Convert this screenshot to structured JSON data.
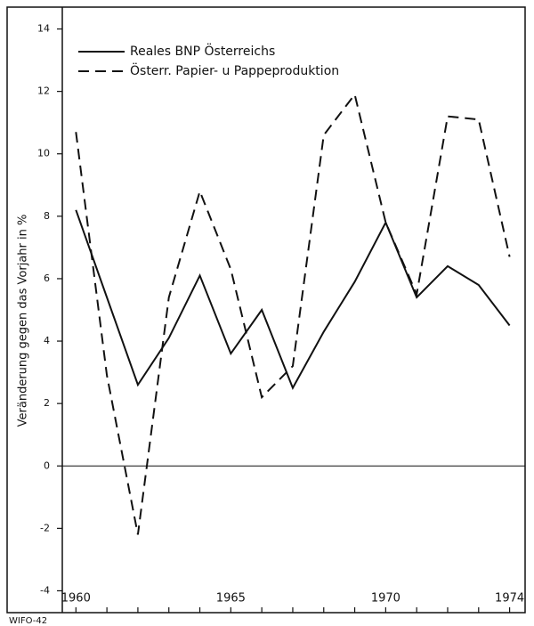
{
  "chart_data": {
    "type": "line",
    "y_label": "Veränderung gegen das Vorjahr in %",
    "source": "WIFO-42",
    "x": [
      1960,
      1961,
      1962,
      1963,
      1964,
      1965,
      1966,
      1967,
      1968,
      1969,
      1970,
      1971,
      1972,
      1973,
      1974
    ],
    "series": [
      {
        "name": "Reales BNP Österreichs",
        "color": "#111111",
        "dash": "solid",
        "values": [
          8.2,
          5.4,
          2.6,
          4.1,
          6.1,
          3.6,
          5.0,
          2.5,
          4.3,
          5.9,
          7.8,
          5.4,
          6.4,
          5.8,
          4.5
        ]
      },
      {
        "name": "Österr. Papier- u Pappeproduktion",
        "color": "#111111",
        "dash": "dashed",
        "values": [
          10.7,
          2.9,
          -2.2,
          5.4,
          8.8,
          6.3,
          2.2,
          3.2,
          10.6,
          11.9,
          7.8,
          5.5,
          11.2,
          11.1,
          6.7
        ]
      }
    ],
    "xlim": [
      1959.56,
      1974.5
    ],
    "xticks": [
      1960,
      1961,
      1962,
      1963,
      1964,
      1965,
      1966,
      1967,
      1968,
      1969,
      1970,
      1971,
      1972,
      1973,
      1974
    ],
    "xtick_labels": [
      1960,
      1965,
      1970,
      1974
    ],
    "ylim": [
      -4.7,
      14.7
    ],
    "yticks": [
      -4,
      -2,
      0,
      2,
      4,
      6,
      8,
      10,
      12,
      14
    ],
    "zero_line": true
  }
}
